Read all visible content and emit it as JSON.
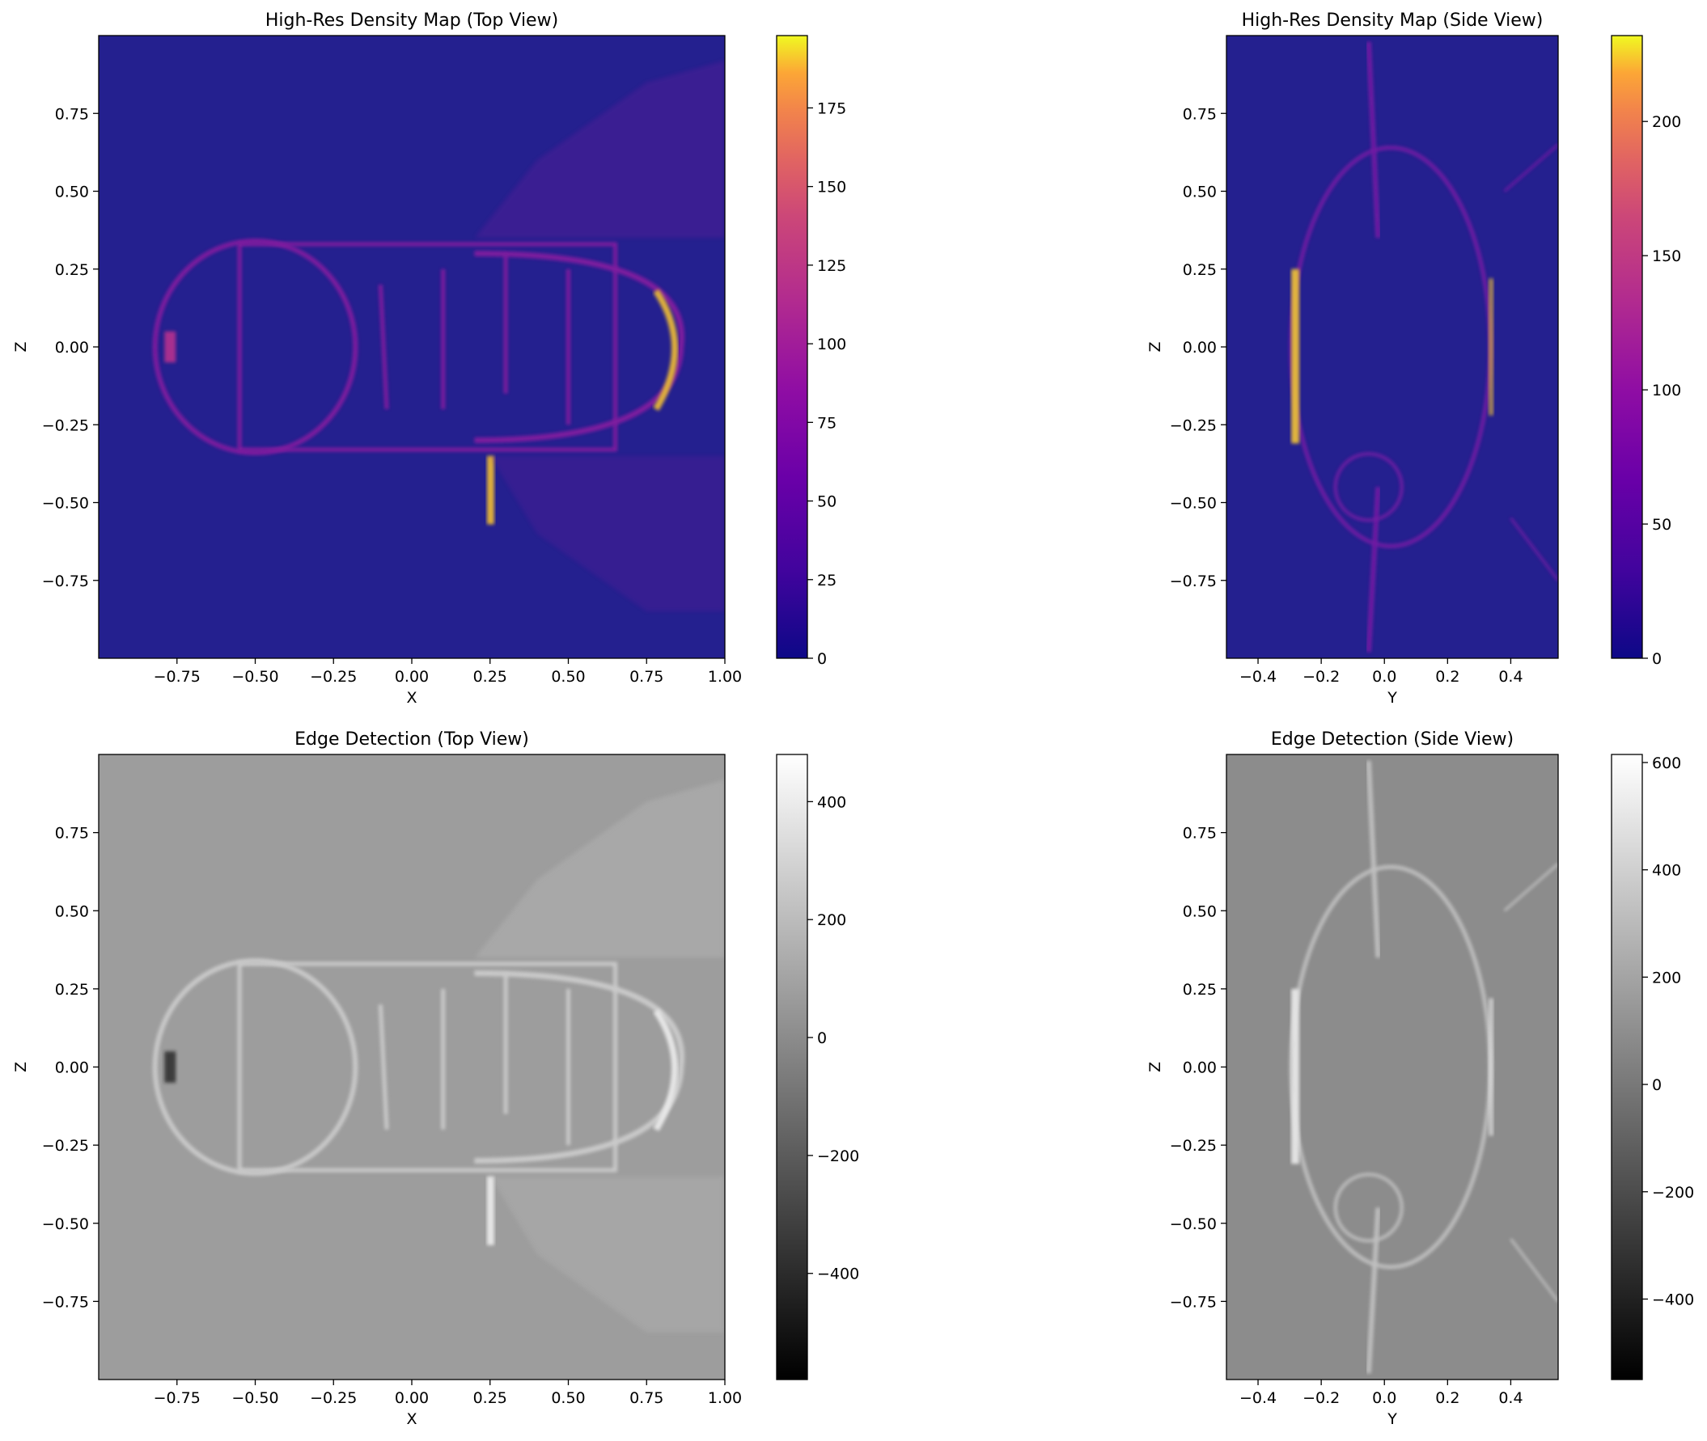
{
  "chart_data": [
    {
      "type": "heatmap",
      "panel": "top-left",
      "title": "High-Res Density Map (Top View)",
      "xlabel": "X",
      "ylabel": "Z",
      "xlim": [
        -1.0,
        1.0
      ],
      "ylim": [
        -1.0,
        1.0
      ],
      "xticks": [
        -0.75,
        -0.5,
        -0.25,
        0.0,
        0.25,
        0.5,
        0.75,
        1.0
      ],
      "xtick_labels": [
        "−0.75",
        "−0.50",
        "−0.25",
        "0.00",
        "0.25",
        "0.50",
        "0.75",
        "1.00"
      ],
      "yticks": [
        0.75,
        0.5,
        0.25,
        0.0,
        -0.25,
        -0.5,
        -0.75
      ],
      "ytick_labels": [
        "0.75",
        "0.50",
        "0.25",
        "0.00",
        "−0.25",
        "−0.50",
        "−0.75"
      ],
      "colormap": "plasma",
      "colorbar": {
        "range": [
          0,
          198
        ],
        "ticks": [
          0,
          25,
          50,
          75,
          100,
          125,
          150,
          175
        ],
        "tick_labels": [
          "0",
          "25",
          "50",
          "75",
          "100",
          "125",
          "150",
          "175"
        ]
      },
      "background_color": "#24208f"
    },
    {
      "type": "heatmap",
      "panel": "top-right",
      "title": "High-Res Density Map (Side View)",
      "xlabel": "Y",
      "ylabel": "Z",
      "xlim": [
        -0.5,
        0.55
      ],
      "ylim": [
        -1.0,
        1.0
      ],
      "xticks": [
        -0.4,
        -0.2,
        0.0,
        0.2,
        0.4
      ],
      "xtick_labels": [
        "−0.4",
        "−0.2",
        "0.0",
        "0.2",
        "0.4"
      ],
      "yticks": [
        0.75,
        0.5,
        0.25,
        0.0,
        -0.25,
        -0.5,
        -0.75
      ],
      "ytick_labels": [
        "0.75",
        "0.50",
        "0.25",
        "0.00",
        "−0.25",
        "−0.50",
        "−0.75"
      ],
      "colormap": "plasma",
      "colorbar": {
        "range": [
          0,
          232
        ],
        "ticks": [
          0,
          50,
          100,
          150,
          200
        ],
        "tick_labels": [
          "0",
          "50",
          "100",
          "150",
          "200"
        ]
      },
      "background_color": "#24208f"
    },
    {
      "type": "heatmap",
      "panel": "bottom-left",
      "title": "Edge Detection (Top View)",
      "xlabel": "X",
      "ylabel": "Z",
      "xlim": [
        -1.0,
        1.0
      ],
      "ylim": [
        -1.0,
        1.0
      ],
      "xticks": [
        -0.75,
        -0.5,
        -0.25,
        0.0,
        0.25,
        0.5,
        0.75,
        1.0
      ],
      "xtick_labels": [
        "−0.75",
        "−0.50",
        "−0.25",
        "0.00",
        "0.25",
        "0.50",
        "0.75",
        "1.00"
      ],
      "yticks": [
        0.75,
        0.5,
        0.25,
        0.0,
        -0.25,
        -0.5,
        -0.75
      ],
      "ytick_labels": [
        "0.75",
        "0.50",
        "0.25",
        "0.00",
        "−0.25",
        "−0.50",
        "−0.75"
      ],
      "colormap": "gray",
      "colorbar": {
        "range": [
          -580,
          480
        ],
        "ticks": [
          -400,
          -200,
          0,
          200,
          400
        ],
        "tick_labels": [
          "−400",
          "−200",
          "0",
          "200",
          "400"
        ]
      },
      "background_color": "#9d9d9d"
    },
    {
      "type": "heatmap",
      "panel": "bottom-right",
      "title": "Edge Detection (Side View)",
      "xlabel": "Y",
      "ylabel": "Z",
      "xlim": [
        -0.5,
        0.55
      ],
      "ylim": [
        -1.0,
        1.0
      ],
      "xticks": [
        -0.4,
        -0.2,
        0.0,
        0.2,
        0.4
      ],
      "xtick_labels": [
        "−0.4",
        "−0.2",
        "0.0",
        "0.2",
        "0.4"
      ],
      "yticks": [
        0.75,
        0.5,
        0.25,
        0.0,
        -0.25,
        -0.5,
        -0.75
      ],
      "ytick_labels": [
        "0.75",
        "0.50",
        "0.25",
        "0.00",
        "−0.25",
        "−0.50",
        "−0.75"
      ],
      "colormap": "gray",
      "colorbar": {
        "range": [
          -550,
          615
        ],
        "ticks": [
          -400,
          -200,
          0,
          200,
          400,
          600
        ],
        "tick_labels": [
          "−400",
          "−200",
          "0",
          "200",
          "400",
          "600"
        ]
      },
      "background_color": "#8c8c8c"
    }
  ]
}
